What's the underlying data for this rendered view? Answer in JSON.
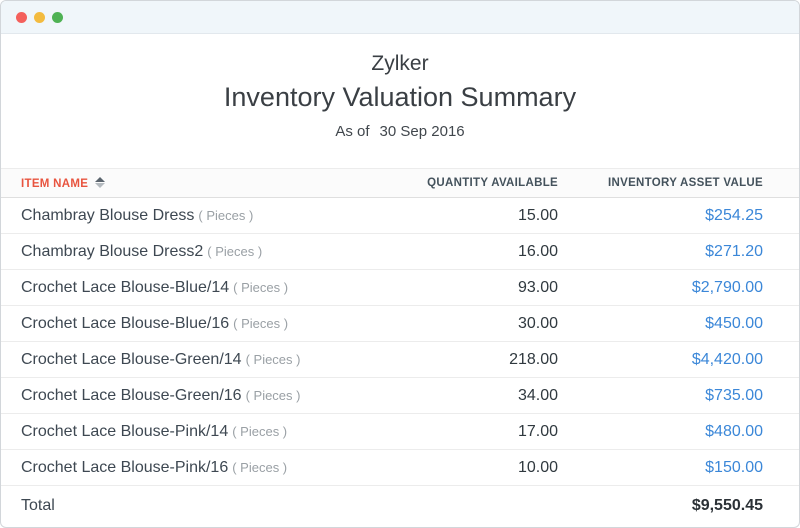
{
  "window": {
    "controls": [
      {
        "name": "close"
      },
      {
        "name": "minimize"
      },
      {
        "name": "zoom"
      }
    ]
  },
  "report": {
    "company": "Zylker",
    "title": "Inventory Valuation Summary",
    "as_of_label": "As of",
    "as_of_date": "30 Sep 2016"
  },
  "table": {
    "columns": [
      {
        "label": "ITEM NAME",
        "sorted": "asc"
      },
      {
        "label": "QUANTITY AVAILABLE",
        "sorted": "none"
      },
      {
        "label": "INVENTORY ASSET VALUE",
        "sorted": "none"
      }
    ],
    "rows": [
      {
        "name": "Chambray Blouse Dress",
        "unit": "( Pieces )",
        "quantity": "15.00",
        "value": "$254.25"
      },
      {
        "name": "Chambray Blouse Dress2",
        "unit": "( Pieces )",
        "quantity": "16.00",
        "value": "$271.20"
      },
      {
        "name": "Crochet Lace Blouse-Blue/14",
        "unit": "( Pieces )",
        "quantity": "93.00",
        "value": "$2,790.00"
      },
      {
        "name": "Crochet Lace Blouse-Blue/16",
        "unit": "( Pieces )",
        "quantity": "30.00",
        "value": "$450.00"
      },
      {
        "name": "Crochet Lace Blouse-Green/14",
        "unit": "( Pieces )",
        "quantity": "218.00",
        "value": "$4,420.00"
      },
      {
        "name": "Crochet Lace Blouse-Green/16",
        "unit": "( Pieces )",
        "quantity": "34.00",
        "value": "$735.00"
      },
      {
        "name": "Crochet Lace Blouse-Pink/14",
        "unit": "( Pieces )",
        "quantity": "17.00",
        "value": "$480.00"
      },
      {
        "name": "Crochet Lace Blouse-Pink/16",
        "unit": "( Pieces )",
        "quantity": "10.00",
        "value": "$150.00"
      }
    ],
    "total": {
      "label": "Total",
      "value": "$9,550.45"
    }
  },
  "colors": {
    "header_accent_red": "#e8543f",
    "value_link_blue": "#3b87d8",
    "titlebar_bg": "#f0f6fa",
    "dot_red": "#f4605c",
    "dot_yellow": "#f3bb3f",
    "dot_green": "#4fb254"
  }
}
